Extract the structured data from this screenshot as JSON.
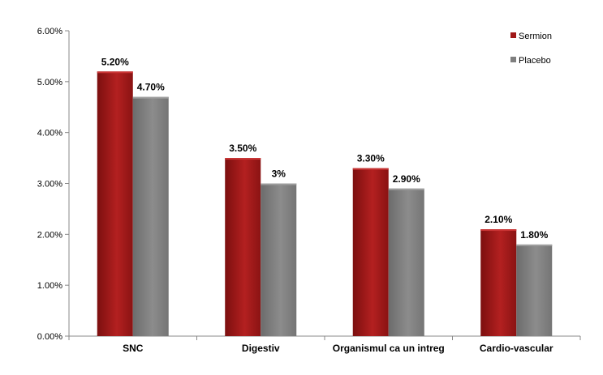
{
  "chart_data": {
    "type": "bar",
    "categories": [
      "SNC",
      "Digestiv",
      "Organismul ca un intreg",
      "Cardio-vascular"
    ],
    "series": [
      {
        "name": "Sermion",
        "values": [
          5.2,
          3.5,
          3.3,
          2.1
        ],
        "labels": [
          "5.20%",
          "3.50%",
          "3.30%",
          "2.10%"
        ],
        "color": "#a01818"
      },
      {
        "name": "Placebo",
        "values": [
          4.7,
          3.0,
          2.9,
          1.8
        ],
        "labels": [
          "4.70%",
          "3%",
          "2.90%",
          "1.80%"
        ],
        "color": "#7f7f7f"
      }
    ],
    "ylim": [
      0,
      6
    ],
    "yticks": [
      "0.00%",
      "1.00%",
      "2.00%",
      "3.00%",
      "4.00%",
      "5.00%",
      "6.00%"
    ],
    "title": "",
    "xlabel": "",
    "ylabel": "",
    "grid": false,
    "legend": "top-right"
  }
}
